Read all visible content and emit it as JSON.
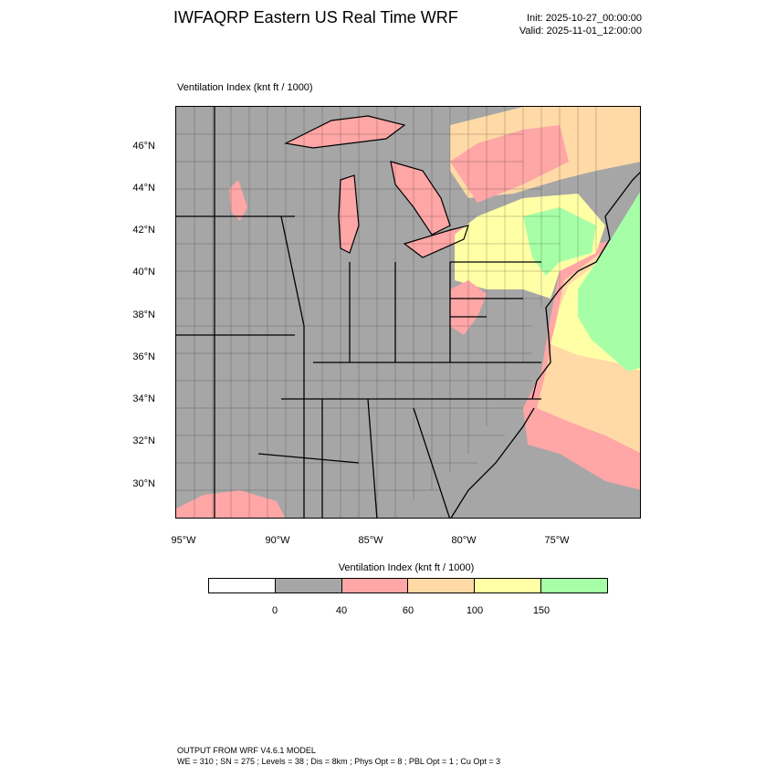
{
  "header": {
    "title": "IWFAQRP Eastern US Real Time WRF",
    "init": "Init: 2025-10-27_00:00:00",
    "valid": "Valid: 2025-11-01_12:00:00"
  },
  "field_label": "Ventilation Index   (knt ft / 1000)",
  "map": {
    "latitudes": [
      "46°N",
      "44°N",
      "42°N",
      "40°N",
      "38°N",
      "36°N",
      "34°N",
      "32°N",
      "30°N"
    ],
    "longitudes": [
      "95°W",
      "90°W",
      "85°W",
      "80°W",
      "75°W"
    ]
  },
  "legend": {
    "title": "Ventilation Index  (knt ft / 1000)",
    "labels": [
      "0",
      "40",
      "60",
      "100",
      "150"
    ],
    "colors": [
      "#ffffff",
      "#a6a6a6",
      "#ffa6a6",
      "#ffd9a6",
      "#ffffa6",
      "#a6ffa6"
    ]
  },
  "footer": {
    "line1": "OUTPUT FROM WRF V4.6.1 MODEL",
    "line2": "WE = 310 ; SN = 275 ; Levels = 38 ; Dis = 8km ; Phys Opt = 8 ; PBL Opt = 1 ; Cu Opt = 3"
  }
}
